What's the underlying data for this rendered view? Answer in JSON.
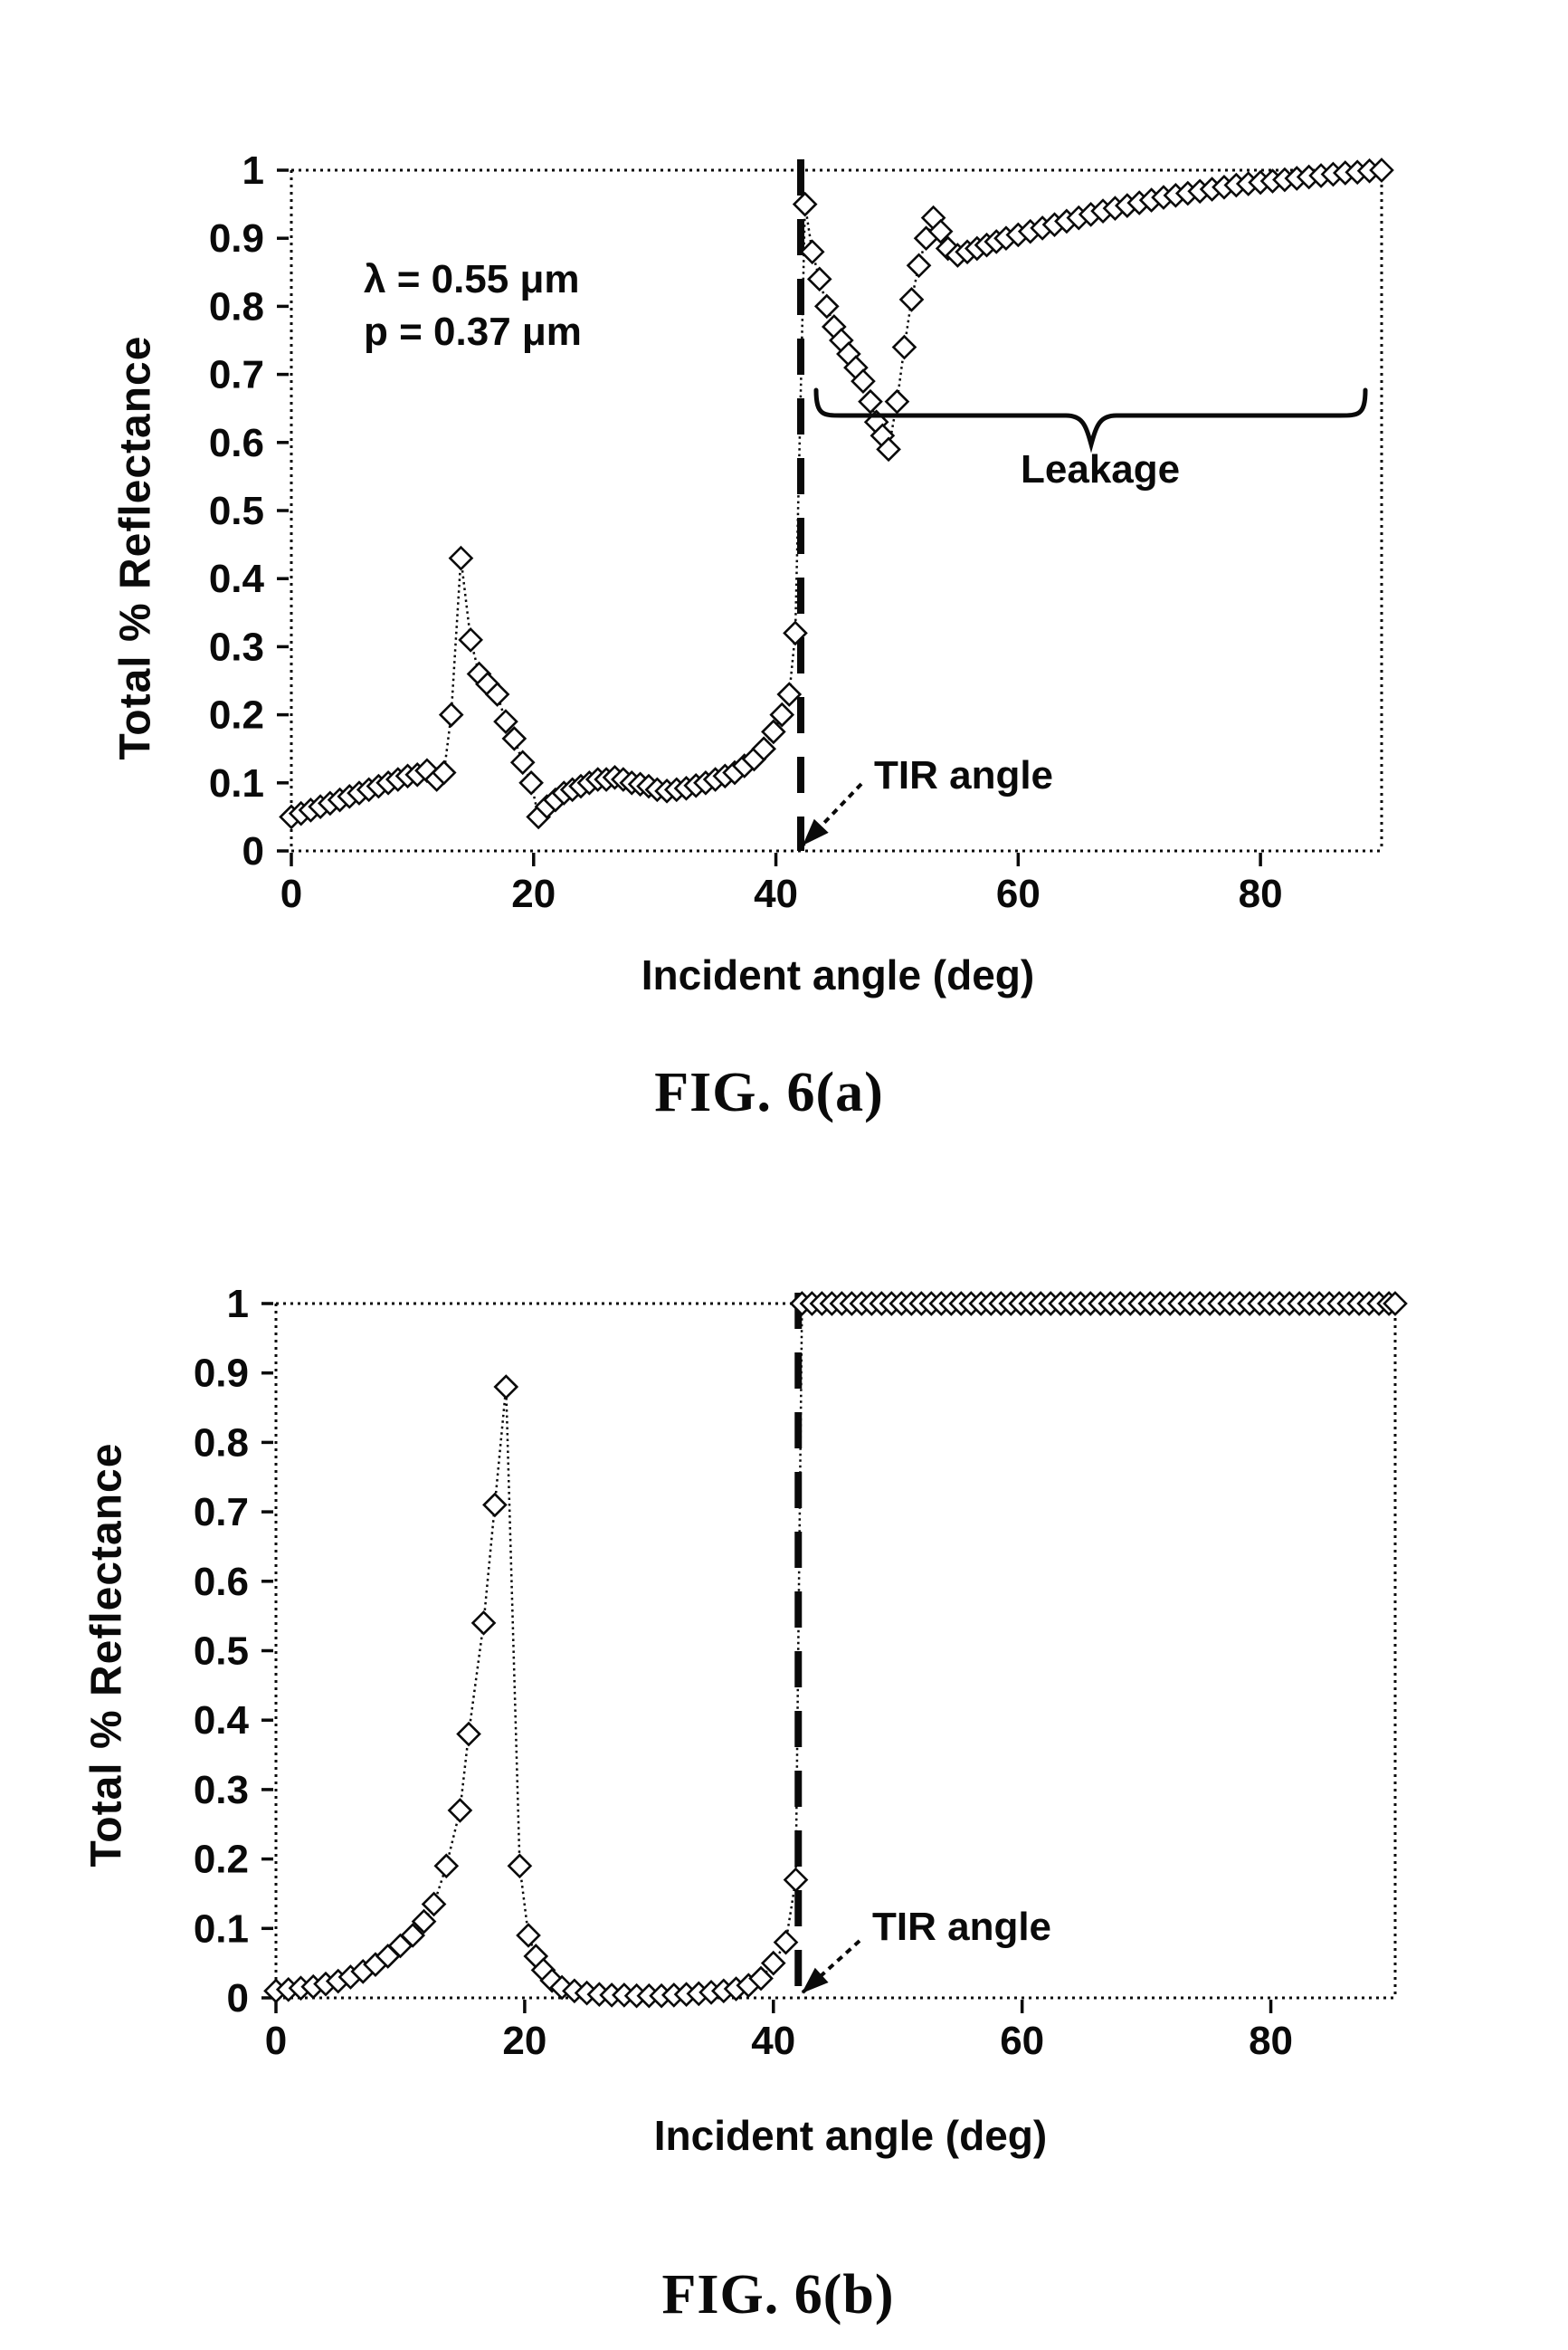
{
  "page": {
    "background": "#ffffff",
    "ink": "#0a0a0a"
  },
  "chart_data": [
    {
      "type": "line",
      "figure": "FIG. 6(a)",
      "xlabel": "Incident angle (deg)",
      "ylabel": "Total % Reflectance",
      "xlim": [
        0,
        90
      ],
      "ylim": [
        0,
        1
      ],
      "x_ticks": [
        0,
        20,
        40,
        60,
        80
      ],
      "x_tick_labels": [
        "0",
        "20",
        "40",
        "60",
        "80"
      ],
      "y_ticks": [
        0,
        0.1,
        0.2,
        0.3,
        0.4,
        0.5,
        0.6,
        0.7,
        0.8,
        0.9,
        1
      ],
      "y_tick_labels": [
        "0",
        "0.1",
        "0.2",
        "0.3",
        "0.4",
        "0.5",
        "0.6",
        "0.7",
        "0.8",
        "0.9",
        "1"
      ],
      "marker": "diamond",
      "line_style": "dotted",
      "grid": false,
      "tir_angle": 42.05,
      "annotations": {
        "lambda": "λ = 0.55 μm",
        "pitch": "p = 0.37 μm",
        "leakage": "Leakage",
        "tir": "TIR angle"
      },
      "series": [
        {
          "name": "reflectance",
          "points": [
            [
              0,
              0.05
            ],
            [
              0.8,
              0.055
            ],
            [
              1.6,
              0.06
            ],
            [
              2.4,
              0.065
            ],
            [
              3.2,
              0.07
            ],
            [
              4,
              0.075
            ],
            [
              4.8,
              0.08
            ],
            [
              5.6,
              0.085
            ],
            [
              6.4,
              0.09
            ],
            [
              7.2,
              0.095
            ],
            [
              8,
              0.1
            ],
            [
              8.8,
              0.105
            ],
            [
              9.6,
              0.11
            ],
            [
              10.4,
              0.112
            ],
            [
              11.2,
              0.118
            ],
            [
              12,
              0.105
            ],
            [
              12.6,
              0.115
            ],
            [
              13.2,
              0.2
            ],
            [
              14,
              0.43
            ],
            [
              14.8,
              0.31
            ],
            [
              15.5,
              0.26
            ],
            [
              16.2,
              0.245
            ],
            [
              17,
              0.23
            ],
            [
              17.7,
              0.19
            ],
            [
              18.4,
              0.165
            ],
            [
              19.1,
              0.13
            ],
            [
              19.8,
              0.1
            ],
            [
              20.4,
              0.05
            ],
            [
              21.1,
              0.065
            ],
            [
              21.8,
              0.075
            ],
            [
              22.5,
              0.085
            ],
            [
              23.2,
              0.09
            ],
            [
              23.9,
              0.095
            ],
            [
              24.6,
              0.1
            ],
            [
              25.3,
              0.105
            ],
            [
              26,
              0.105
            ],
            [
              26.7,
              0.108
            ],
            [
              27.4,
              0.105
            ],
            [
              28.1,
              0.1
            ],
            [
              28.8,
              0.098
            ],
            [
              29.5,
              0.095
            ],
            [
              30.2,
              0.09
            ],
            [
              31,
              0.088
            ],
            [
              31.8,
              0.09
            ],
            [
              32.6,
              0.092
            ],
            [
              33.4,
              0.096
            ],
            [
              34.2,
              0.1
            ],
            [
              35,
              0.105
            ],
            [
              35.8,
              0.11
            ],
            [
              36.6,
              0.115
            ],
            [
              37.4,
              0.125
            ],
            [
              38.2,
              0.135
            ],
            [
              39,
              0.15
            ],
            [
              39.8,
              0.175
            ],
            [
              40.5,
              0.2
            ],
            [
              41.1,
              0.23
            ],
            [
              41.6,
              0.32
            ],
            [
              42.4,
              0.95
            ],
            [
              43,
              0.88
            ],
            [
              43.6,
              0.84
            ],
            [
              44.2,
              0.8
            ],
            [
              44.8,
              0.77
            ],
            [
              45.4,
              0.75
            ],
            [
              46,
              0.73
            ],
            [
              46.6,
              0.71
            ],
            [
              47.2,
              0.69
            ],
            [
              47.8,
              0.66
            ],
            [
              48.3,
              0.63
            ],
            [
              48.8,
              0.61
            ],
            [
              49.3,
              0.59
            ],
            [
              50,
              0.66
            ],
            [
              50.6,
              0.74
            ],
            [
              51.2,
              0.81
            ],
            [
              51.8,
              0.86
            ],
            [
              52.4,
              0.9
            ],
            [
              53,
              0.93
            ],
            [
              53.6,
              0.91
            ],
            [
              54.2,
              0.885
            ],
            [
              55,
              0.875
            ],
            [
              55.8,
              0.88
            ],
            [
              56.6,
              0.885
            ],
            [
              57.4,
              0.89
            ],
            [
              58.2,
              0.895
            ],
            [
              59,
              0.9
            ],
            [
              60,
              0.905
            ],
            [
              61,
              0.91
            ],
            [
              62,
              0.915
            ],
            [
              63,
              0.92
            ],
            [
              64,
              0.925
            ],
            [
              65,
              0.93
            ],
            [
              66,
              0.935
            ],
            [
              67,
              0.94
            ],
            [
              68,
              0.944
            ],
            [
              69,
              0.948
            ],
            [
              70,
              0.952
            ],
            [
              71,
              0.956
            ],
            [
              72,
              0.96
            ],
            [
              73,
              0.963
            ],
            [
              74,
              0.966
            ],
            [
              75,
              0.969
            ],
            [
              76,
              0.972
            ],
            [
              77,
              0.975
            ],
            [
              78,
              0.978
            ],
            [
              79,
              0.98
            ],
            [
              80,
              0.982
            ],
            [
              81,
              0.984
            ],
            [
              82,
              0.986
            ],
            [
              83,
              0.988
            ],
            [
              84,
              0.99
            ],
            [
              85,
              0.992
            ],
            [
              86,
              0.994
            ],
            [
              87,
              0.996
            ],
            [
              88,
              0.997
            ],
            [
              89,
              0.999
            ],
            [
              90,
              1
            ]
          ]
        }
      ]
    },
    {
      "type": "line",
      "figure": "FIG. 6(b)",
      "xlabel": "Incident angle (deg)",
      "ylabel": "Total % Reflectance",
      "xlim": [
        0,
        90
      ],
      "ylim": [
        0,
        1
      ],
      "x_ticks": [
        0,
        20,
        40,
        60,
        80
      ],
      "x_tick_labels": [
        "0",
        "20",
        "40",
        "60",
        "80"
      ],
      "y_ticks": [
        0,
        0.1,
        0.2,
        0.3,
        0.4,
        0.5,
        0.6,
        0.7,
        0.8,
        0.9,
        1
      ],
      "y_tick_labels": [
        "0",
        "0.1",
        "0.2",
        "0.3",
        "0.4",
        "0.5",
        "0.6",
        "0.7",
        "0.8",
        "0.9",
        "1"
      ],
      "marker": "diamond",
      "line_style": "dotted",
      "grid": false,
      "tir_angle": 42.0,
      "annotations": {
        "tir": "TIR angle"
      },
      "series": [
        {
          "name": "reflectance",
          "points": [
            [
              0,
              0.01
            ],
            [
              1,
              0.012
            ],
            [
              2,
              0.014
            ],
            [
              3,
              0.016
            ],
            [
              4,
              0.02
            ],
            [
              5,
              0.024
            ],
            [
              6,
              0.03
            ],
            [
              7,
              0.038
            ],
            [
              8,
              0.048
            ],
            [
              9,
              0.06
            ],
            [
              10,
              0.075
            ],
            [
              11,
              0.09
            ],
            [
              11.9,
              0.11
            ],
            [
              12.7,
              0.135
            ],
            [
              13.7,
              0.19
            ],
            [
              14.8,
              0.27
            ],
            [
              15.5,
              0.38
            ],
            [
              16.7,
              0.54
            ],
            [
              17.6,
              0.71
            ],
            [
              18.5,
              0.88
            ],
            [
              19.6,
              0.19
            ],
            [
              20.3,
              0.09
            ],
            [
              20.9,
              0.06
            ],
            [
              21.5,
              0.04
            ],
            [
              22.2,
              0.025
            ],
            [
              23,
              0.015
            ],
            [
              24,
              0.01
            ],
            [
              25,
              0.007
            ],
            [
              26,
              0.005
            ],
            [
              27,
              0.004
            ],
            [
              28,
              0.004
            ],
            [
              29,
              0.003
            ],
            [
              30,
              0.003
            ],
            [
              31,
              0.003
            ],
            [
              32,
              0.004
            ],
            [
              33,
              0.005
            ],
            [
              34,
              0.006
            ],
            [
              35,
              0.008
            ],
            [
              36,
              0.01
            ],
            [
              37,
              0.013
            ],
            [
              38,
              0.018
            ],
            [
              39,
              0.028
            ],
            [
              40,
              0.05
            ],
            [
              41,
              0.08
            ],
            [
              41.8,
              0.17
            ],
            [
              42.3,
              1
            ],
            [
              43.1,
              1
            ],
            [
              43.9,
              1
            ],
            [
              44.7,
              1
            ],
            [
              45.5,
              1
            ],
            [
              46.3,
              1
            ],
            [
              47.1,
              1
            ],
            [
              47.9,
              1
            ],
            [
              48.7,
              1
            ],
            [
              49.5,
              1
            ],
            [
              50.3,
              1
            ],
            [
              51.1,
              1
            ],
            [
              51.9,
              1
            ],
            [
              52.7,
              1
            ],
            [
              53.5,
              1
            ],
            [
              54.3,
              1
            ],
            [
              55.1,
              1
            ],
            [
              55.9,
              1
            ],
            [
              56.7,
              1
            ],
            [
              57.5,
              1
            ],
            [
              58.3,
              1
            ],
            [
              59.1,
              1
            ],
            [
              59.9,
              1
            ],
            [
              60.7,
              1
            ],
            [
              61.5,
              1
            ],
            [
              62.3,
              1
            ],
            [
              63.1,
              1
            ],
            [
              63.9,
              1
            ],
            [
              64.7,
              1
            ],
            [
              65.5,
              1
            ],
            [
              66.3,
              1
            ],
            [
              67.1,
              1
            ],
            [
              67.9,
              1
            ],
            [
              68.7,
              1
            ],
            [
              69.5,
              1
            ],
            [
              70.3,
              1
            ],
            [
              71.1,
              1
            ],
            [
              71.9,
              1
            ],
            [
              72.7,
              1
            ],
            [
              73.5,
              1
            ],
            [
              74.3,
              1
            ],
            [
              75.1,
              1
            ],
            [
              75.9,
              1
            ],
            [
              76.7,
              1
            ],
            [
              77.5,
              1
            ],
            [
              78.3,
              1
            ],
            [
              79.1,
              1
            ],
            [
              79.9,
              1
            ],
            [
              80.7,
              1
            ],
            [
              81.5,
              1
            ],
            [
              82.3,
              1
            ],
            [
              83.1,
              1
            ],
            [
              83.9,
              1
            ],
            [
              84.7,
              1
            ],
            [
              85.5,
              1
            ],
            [
              86.3,
              1
            ],
            [
              87.1,
              1
            ],
            [
              87.9,
              1
            ],
            [
              88.7,
              1
            ],
            [
              89.5,
              1
            ],
            [
              90,
              1
            ]
          ]
        }
      ]
    }
  ]
}
